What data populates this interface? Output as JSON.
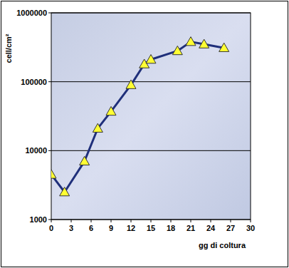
{
  "chart_data": {
    "type": "line",
    "x_label": "gg di coltura",
    "y_label": "cell/cm²",
    "x": [
      0,
      2,
      5,
      7,
      9,
      12,
      14,
      15,
      19,
      21,
      23,
      26
    ],
    "values": [
      4500,
      2500,
      7000,
      21000,
      37000,
      90000,
      180000,
      210000,
      280000,
      380000,
      350000,
      310000
    ],
    "color": "#1f2f7a",
    "marker": "triangle",
    "xlim": [
      0,
      30
    ],
    "ylim": [
      1000,
      1000000
    ],
    "xticks": [
      0,
      3,
      6,
      9,
      12,
      15,
      18,
      21,
      24,
      27,
      30
    ],
    "yticks": [
      1000,
      10000,
      100000,
      1000000
    ],
    "log": "y",
    "grid": true
  }
}
